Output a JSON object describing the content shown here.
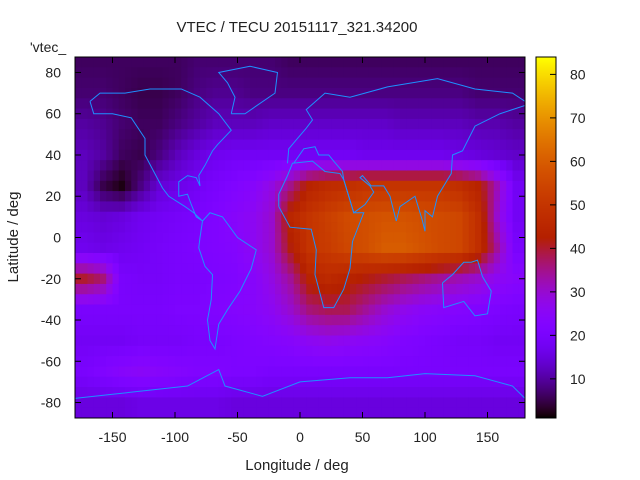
{
  "chart_data": {
    "type": "heatmap",
    "title": "VTEC / TECU 20151117_321.34200",
    "key_label": "'vtec_",
    "xlabel": "Longitude / deg",
    "ylabel": "Latitude / deg",
    "xlim": [
      -180,
      180
    ],
    "ylim": [
      -87.5,
      87.5
    ],
    "xticks": [
      -150,
      -100,
      -50,
      0,
      50,
      100,
      150
    ],
    "yticks": [
      -80,
      -60,
      -40,
      -20,
      0,
      20,
      40,
      60,
      80
    ],
    "colorbar": {
      "range": [
        1,
        84
      ],
      "ticks": [
        10,
        20,
        30,
        40,
        50,
        60,
        70,
        80
      ],
      "palette": "gnuplot rgbformulae 7,5,15"
    },
    "coastline_color": "#1e90ff",
    "grid_lon_centers": [
      -172.5,
      -157.5,
      -142.5,
      -127.5,
      -112.5,
      -97.5,
      -82.5,
      -67.5,
      -52.5,
      -37.5,
      -22.5,
      -7.5,
      7.5,
      22.5,
      37.5,
      52.5,
      67.5,
      82.5,
      97.5,
      112.5,
      127.5,
      142.5,
      157.5,
      172.5
    ],
    "grid_lat_centers": [
      85,
      70,
      55,
      40,
      25,
      10,
      -5,
      -20,
      -35,
      -50,
      -65,
      -80
    ],
    "values": [
      [
        6,
        6,
        6,
        6,
        6,
        6,
        7,
        7,
        7,
        7,
        7,
        6,
        6,
        6,
        6,
        6,
        6,
        6,
        6,
        6,
        6,
        6,
        6,
        6
      ],
      [
        7,
        7,
        6,
        5,
        5,
        6,
        8,
        9,
        9,
        8,
        8,
        8,
        8,
        8,
        8,
        8,
        8,
        8,
        8,
        8,
        8,
        7,
        7,
        7
      ],
      [
        10,
        9,
        7,
        6,
        6,
        8,
        10,
        12,
        12,
        12,
        13,
        13,
        13,
        13,
        13,
        13,
        13,
        12,
        12,
        12,
        12,
        11,
        11,
        10
      ],
      [
        12,
        10,
        6,
        5,
        8,
        12,
        15,
        17,
        18,
        18,
        18,
        18,
        18,
        18,
        18,
        17,
        17,
        17,
        17,
        17,
        16,
        15,
        14,
        13
      ],
      [
        12,
        5,
        2,
        8,
        14,
        16,
        18,
        20,
        22,
        24,
        28,
        35,
        44,
        47,
        48,
        50,
        50,
        50,
        50,
        50,
        48,
        44,
        32,
        18
      ],
      [
        15,
        14,
        15,
        17,
        18,
        19,
        20,
        22,
        24,
        26,
        30,
        45,
        50,
        53,
        56,
        57,
        58,
        58,
        57,
        56,
        55,
        48,
        30,
        18
      ],
      [
        17,
        16,
        17,
        18,
        19,
        20,
        21,
        22,
        23,
        26,
        30,
        42,
        50,
        52,
        55,
        57,
        60,
        60,
        58,
        56,
        55,
        48,
        34,
        20
      ],
      [
        40,
        36,
        20,
        19,
        19,
        20,
        20,
        21,
        22,
        24,
        28,
        34,
        44,
        46,
        44,
        42,
        40,
        38,
        36,
        34,
        32,
        30,
        26,
        24
      ],
      [
        20,
        20,
        20,
        20,
        20,
        21,
        21,
        22,
        23,
        24,
        26,
        30,
        36,
        38,
        38,
        34,
        30,
        27,
        25,
        24,
        23,
        22,
        21,
        20
      ],
      [
        18,
        18,
        18,
        19,
        19,
        19,
        20,
        20,
        21,
        22,
        23,
        24,
        26,
        27,
        26,
        25,
        24,
        22,
        21,
        20,
        19,
        19,
        18,
        18
      ],
      [
        20,
        22,
        24,
        25,
        24,
        23,
        22,
        22,
        21,
        21,
        20,
        20,
        20,
        20,
        20,
        20,
        20,
        20,
        20,
        20,
        20,
        20,
        20,
        20
      ],
      [
        15,
        15,
        15,
        16,
        16,
        16,
        16,
        16,
        15,
        15,
        15,
        15,
        15,
        15,
        15,
        15,
        15,
        15,
        15,
        15,
        15,
        15,
        15,
        15
      ]
    ]
  }
}
